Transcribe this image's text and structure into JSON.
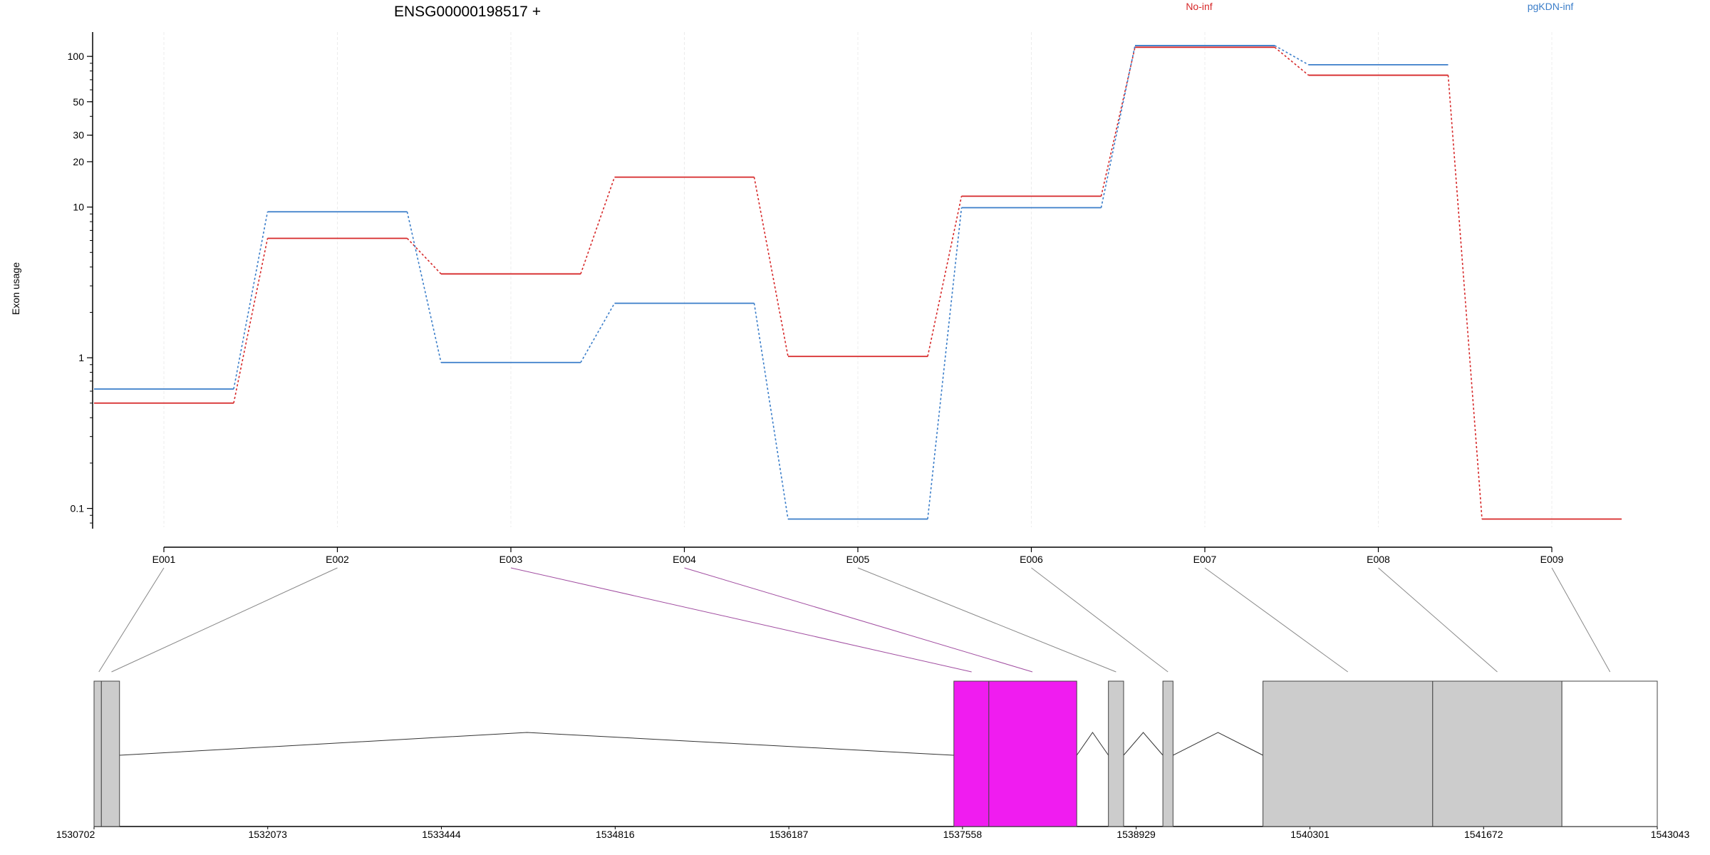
{
  "chart_data": {
    "type": "line",
    "title": "ENSG00000198517 +",
    "ylabel": "Exon usage",
    "xlabel": "",
    "y_scale": "log",
    "ylim": [
      0.075,
      145
    ],
    "y_ticks": [
      {
        "value": 0.1,
        "label": "0.1"
      },
      {
        "value": 1,
        "label": "1"
      },
      {
        "value": 10,
        "label": "10"
      },
      {
        "value": 20,
        "label": "20"
      },
      {
        "value": 30,
        "label": "30"
      },
      {
        "value": 50,
        "label": "50"
      },
      {
        "value": 100,
        "label": "100"
      }
    ],
    "categories": [
      "E001",
      "E002",
      "E003",
      "E004",
      "E005",
      "E006",
      "E007",
      "E008",
      "E009"
    ],
    "series": [
      {
        "name": "No-inf",
        "color": "#d62728",
        "values": [
          0.5,
          6.2,
          3.6,
          15.8,
          1.02,
          11.8,
          115,
          75,
          0.085
        ]
      },
      {
        "name": "pgKDN-inf",
        "color": "#3a7dc9",
        "values": [
          0.62,
          9.3,
          0.93,
          2.3,
          0.085,
          9.9,
          118,
          88,
          null
        ]
      }
    ],
    "legend_position": "top",
    "grid": "vertical",
    "gene_model": {
      "coordinate_ticks": [
        "1530702",
        "1532073",
        "1533444",
        "1534816",
        "1536187",
        "1537558",
        "1538929",
        "1540301",
        "1541672",
        "1543043"
      ],
      "range": [
        1530702,
        1543043
      ],
      "exons": [
        {
          "start": 1530702,
          "end": 1530760,
          "color": "#cccccc"
        },
        {
          "start": 1530760,
          "end": 1530903,
          "color": "#cccccc"
        },
        {
          "start": 1537490,
          "end": 1537766,
          "color": "#f01cf0"
        },
        {
          "start": 1537766,
          "end": 1538460,
          "color": "#f01cf0"
        },
        {
          "start": 1538710,
          "end": 1538830,
          "color": "#cccccc"
        },
        {
          "start": 1539140,
          "end": 1539220,
          "color": "#cccccc"
        },
        {
          "start": 1539930,
          "end": 1541270,
          "color": "#cccccc"
        },
        {
          "start": 1541270,
          "end": 1542290,
          "color": "#cccccc"
        },
        {
          "start": 1542290,
          "end": 1543043,
          "color": "#ffffff"
        }
      ],
      "introns": [
        {
          "from": 1530903,
          "to": 1537490,
          "peak": 1534120
        },
        {
          "from": 1538460,
          "to": 1538710,
          "peak": 1538585
        },
        {
          "from": 1538830,
          "to": 1539140,
          "peak": 1538985
        },
        {
          "from": 1539220,
          "to": 1539930,
          "peak": 1539575
        }
      ],
      "exon_links": [
        {
          "exon": "E001",
          "pos": 1530740,
          "color": "#888888"
        },
        {
          "exon": "E002",
          "pos": 1530840,
          "color": "#888888"
        },
        {
          "exon": "E003",
          "pos": 1537630,
          "color": "#a04ca0"
        },
        {
          "exon": "E004",
          "pos": 1538110,
          "color": "#a04ca0"
        },
        {
          "exon": "E005",
          "pos": 1538770,
          "color": "#888888"
        },
        {
          "exon": "E006",
          "pos": 1539180,
          "color": "#888888"
        },
        {
          "exon": "E007",
          "pos": 1540600,
          "color": "#888888"
        },
        {
          "exon": "E008",
          "pos": 1541780,
          "color": "#888888"
        },
        {
          "exon": "E009",
          "pos": 1542670,
          "color": "#888888"
        }
      ]
    }
  }
}
